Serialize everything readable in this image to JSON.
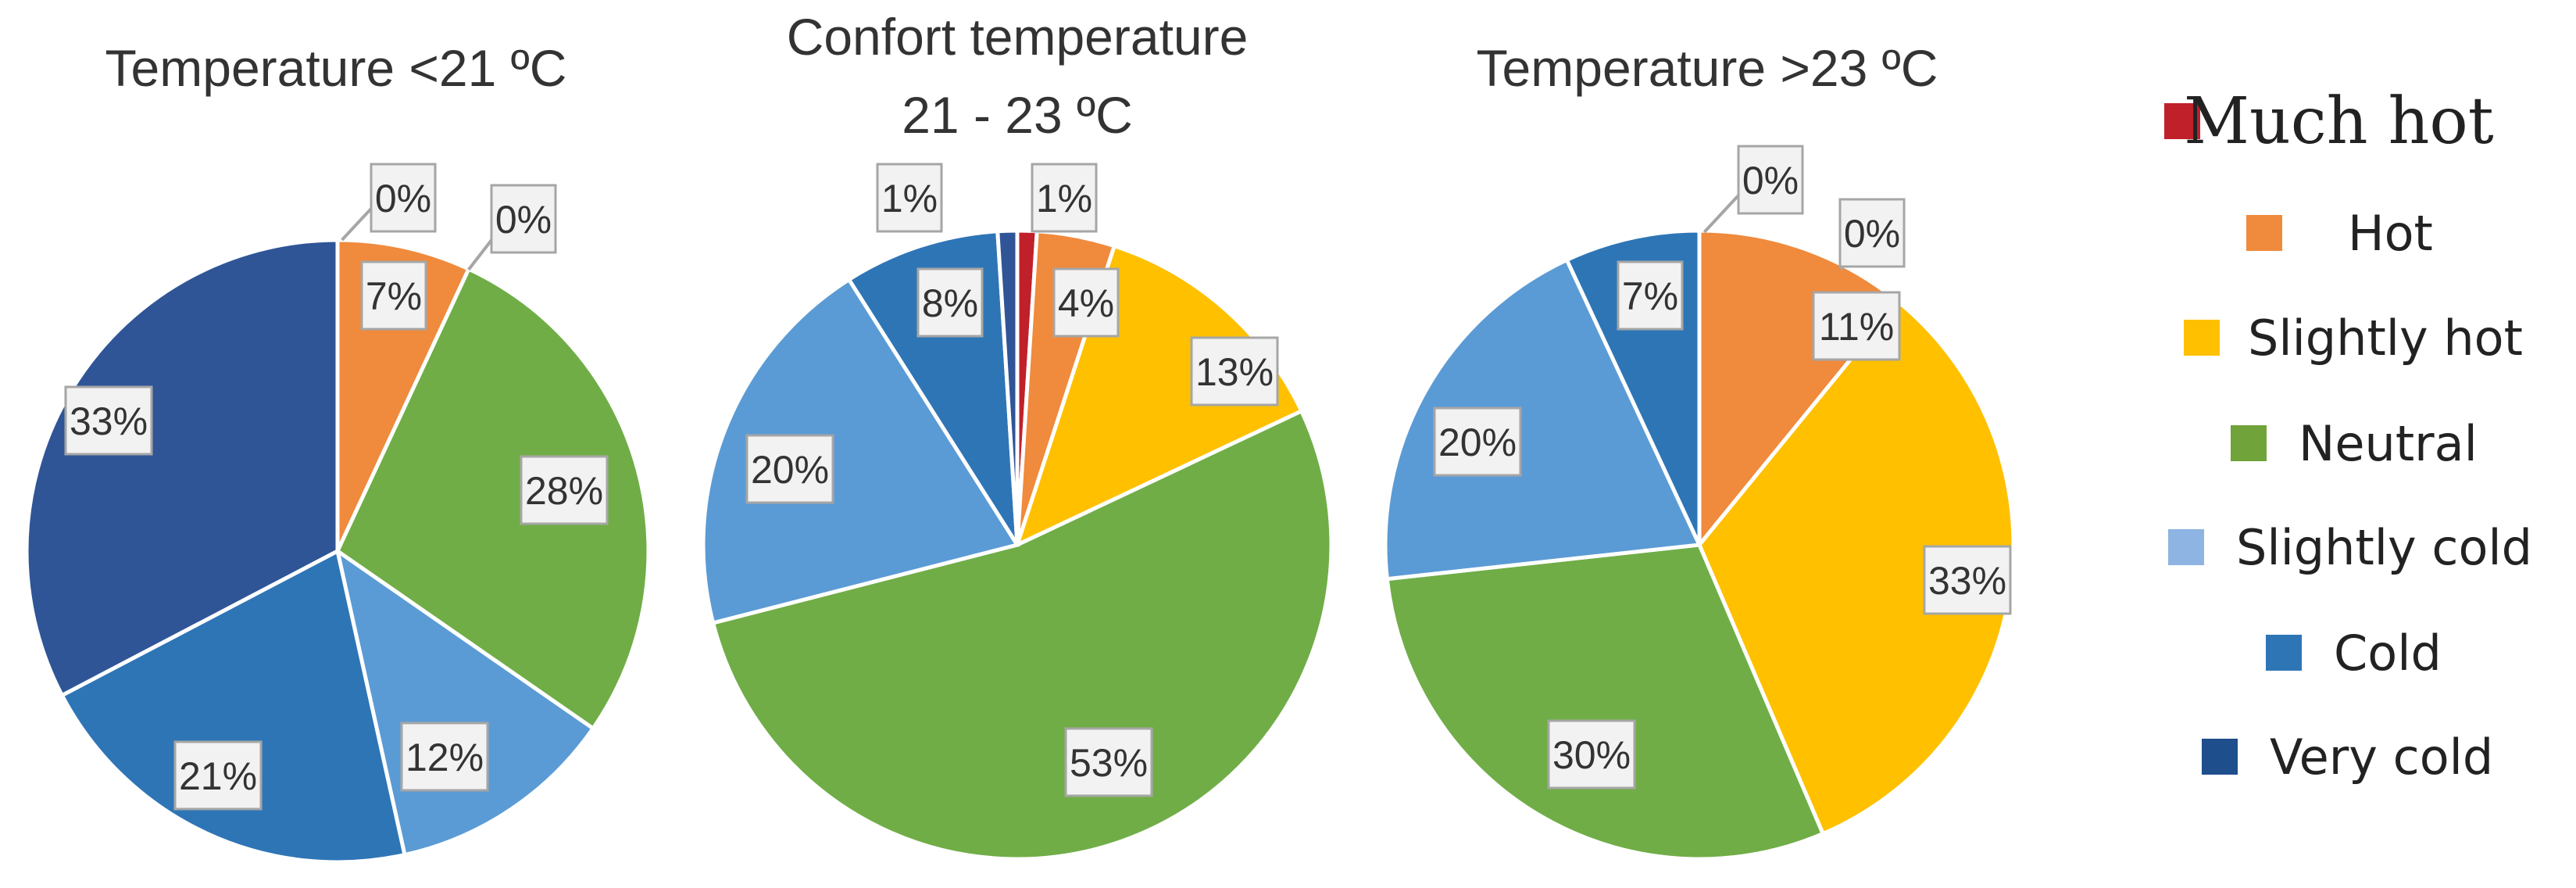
{
  "chart_data": [
    {
      "type": "pie",
      "title": "Temperature <21 ºC",
      "categories": [
        "Hot",
        "Neutral",
        "Slightly cold",
        "Cold",
        "Very cold"
      ],
      "values": [
        7,
        28,
        12,
        21,
        33
      ],
      "labels": [
        "7%",
        "28%",
        "12%",
        "21%",
        "33%"
      ],
      "extra_labels": [
        "0%",
        "0%"
      ]
    },
    {
      "type": "pie",
      "title": [
        "Confort temperature",
        "21 - 23 ºC"
      ],
      "categories": [
        "Much hot",
        "Hot",
        "Slightly hot",
        "Neutral",
        "Slightly cold",
        "Cold",
        "Very cold"
      ],
      "values": [
        1,
        4,
        13,
        53,
        20,
        8,
        1
      ],
      "labels": [
        "1%",
        "4%",
        "13%",
        "53%",
        "20%",
        "8%",
        "1%"
      ]
    },
    {
      "type": "pie",
      "title": "Temperature >23 ºC",
      "categories": [
        "Hot",
        "Slightly hot",
        "Neutral",
        "Slightly cold",
        "Cold"
      ],
      "values": [
        11,
        33,
        30,
        20,
        7
      ],
      "labels": [
        "11%",
        "33%",
        "30%",
        "20%",
        "7%"
      ],
      "extra_labels": [
        "0%",
        "0%"
      ]
    }
  ],
  "legend": [
    {
      "label": "Much hot",
      "color": "#c0202a"
    },
    {
      "label": "Hot",
      "color": "#f08a3c"
    },
    {
      "label": "Slightly hot",
      "color": "#ffc000"
    },
    {
      "label": "Neutral",
      "color": "#70a33a"
    },
    {
      "label": "Slightly cold",
      "color": "#8db4e2"
    },
    {
      "label": "Cold",
      "color": "#2e75b6"
    },
    {
      "label": "Very cold",
      "color": "#1f4e8c"
    }
  ],
  "colors": {
    "Much hot": "#c0202a",
    "Hot": "#f08a3c",
    "Slightly hot": "#ffc000",
    "Neutral": "#70ad47",
    "Slightly cold": "#5b9bd5",
    "Cold": "#2e75b6",
    "Very cold": "#2f5597"
  }
}
